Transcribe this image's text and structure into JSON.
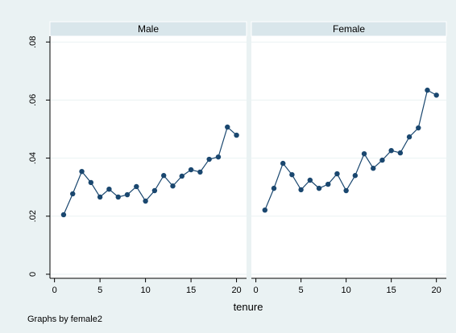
{
  "chart_data": [
    {
      "type": "line",
      "title": "Male",
      "x": [
        1,
        2,
        3,
        4,
        5,
        6,
        7,
        8,
        9,
        10,
        11,
        12,
        13,
        14,
        15,
        16,
        17,
        18,
        19,
        20
      ],
      "values": [
        0.0205,
        0.0277,
        0.0354,
        0.0316,
        0.0266,
        0.0293,
        0.0266,
        0.0274,
        0.0302,
        0.0252,
        0.0288,
        0.034,
        0.0304,
        0.0338,
        0.036,
        0.0352,
        0.0396,
        0.0404,
        0.0507,
        0.0479
      ],
      "color": "#1a476f",
      "xlim": [
        -0.5,
        21.1
      ],
      "xticks": [
        0,
        5,
        10,
        15,
        20
      ],
      "ylim": [
        -0.0014,
        0.082
      ],
      "yticks": [
        0,
        {
          "value": 0.02,
          "label": ".02"
        },
        {
          "value": 0.04,
          "label": ".04"
        },
        {
          "value": 0.06,
          "label": ".06"
        },
        {
          "value": 0.08,
          "label": ".08"
        }
      ],
      "grid": true
    },
    {
      "type": "line",
      "title": "Female",
      "x": [
        1,
        2,
        3,
        4,
        5,
        6,
        7,
        8,
        9,
        10,
        11,
        12,
        13,
        14,
        15,
        16,
        17,
        18,
        19,
        20
      ],
      "values": [
        0.0221,
        0.0296,
        0.0382,
        0.0343,
        0.0291,
        0.0324,
        0.0296,
        0.031,
        0.0346,
        0.0288,
        0.034,
        0.0415,
        0.0365,
        0.0393,
        0.0426,
        0.0418,
        0.0473,
        0.0504,
        0.0634,
        0.0617
      ],
      "color": "#1a476f",
      "xlim": [
        -0.5,
        21.1
      ],
      "xticks": [
        0,
        5,
        10,
        15,
        20
      ],
      "ylim": [
        -0.0014,
        0.082
      ],
      "yticks": [
        0,
        {
          "value": 0.02,
          "label": ".02"
        },
        {
          "value": 0.04,
          "label": ".04"
        },
        {
          "value": 0.06,
          "label": ".06"
        },
        {
          "value": 0.08,
          "label": ".08"
        }
      ],
      "grid": true
    }
  ],
  "x_label": "tenure",
  "note": "Graphs by female2"
}
